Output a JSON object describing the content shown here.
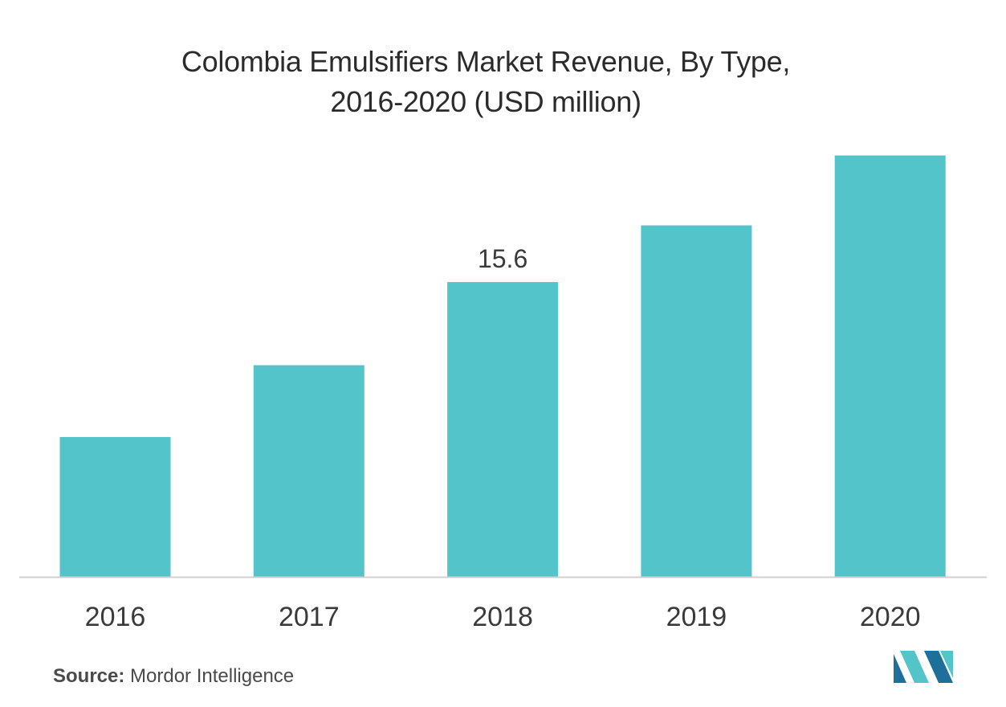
{
  "chart_data": {
    "type": "bar",
    "title_line1": "Colombia Emulsifiers Market Revenue, By Type,",
    "title_line2": "2016-2020 (USD million)",
    "categories": [
      "2016",
      "2017",
      "2018",
      "2019",
      "2020"
    ],
    "values": [
      7.4,
      11.2,
      15.6,
      18.6,
      22.3
    ],
    "data_labels": [
      null,
      null,
      "15.6",
      null,
      null
    ],
    "xlabel": "",
    "ylabel": "",
    "ylim": [
      0,
      25
    ],
    "grid": false,
    "legend": "none",
    "bar_color": "#53c4ca",
    "axis_color": "#d0d0d0"
  },
  "footer": {
    "source_label": "Source:",
    "source_name": "Mordor Intelligence"
  },
  "colors": {
    "logo_dark": "#1f6f9b",
    "logo_light": "#53c4ca"
  }
}
